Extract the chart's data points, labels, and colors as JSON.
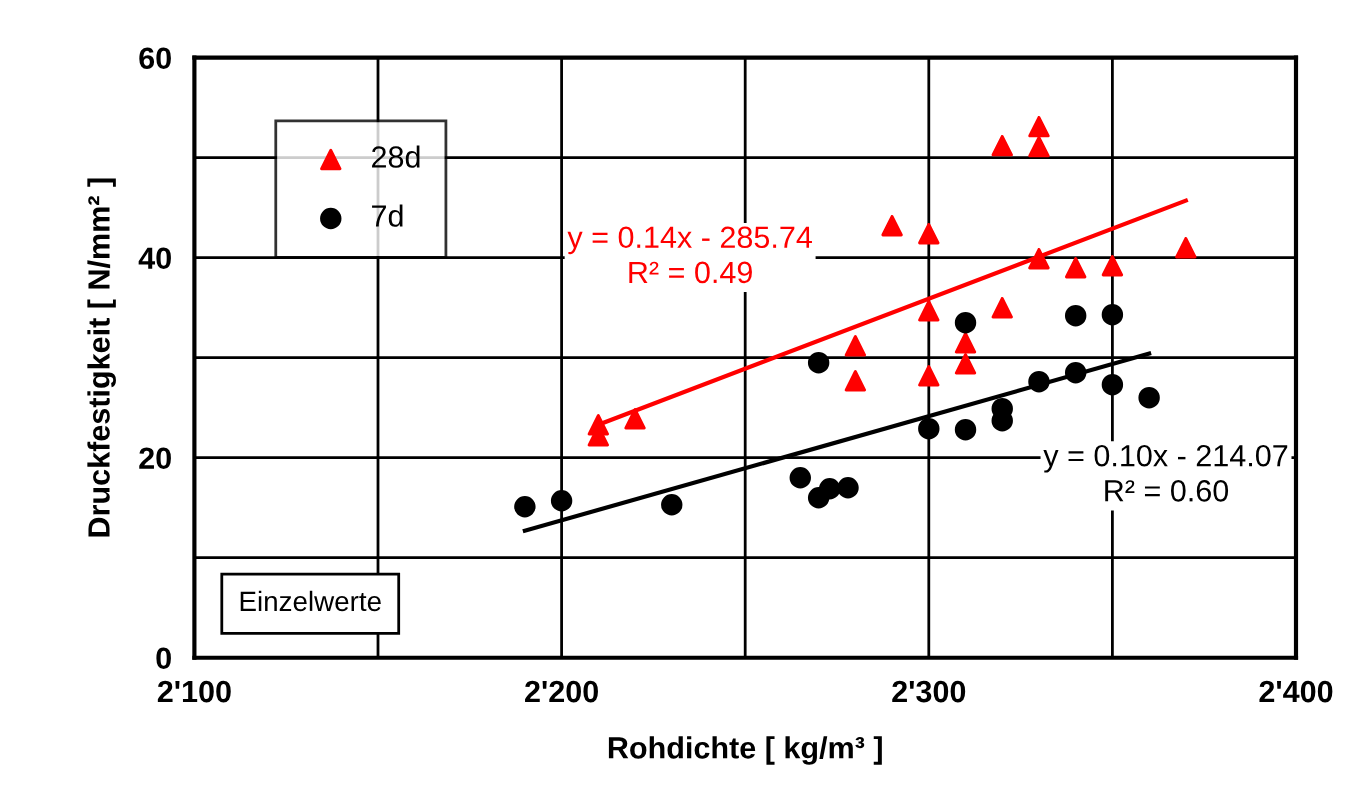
{
  "chart_data": {
    "type": "scatter",
    "xlabel": "Rohdichte [ kg/m³ ]",
    "ylabel": "Druckfestigkeit [ N/mm² ]",
    "xlim": [
      2100,
      2400
    ],
    "ylim": [
      0,
      60
    ],
    "xticks": [
      {
        "value": 2100,
        "label": "2'100"
      },
      {
        "value": 2150,
        "label": null
      },
      {
        "value": 2200,
        "label": "2'200"
      },
      {
        "value": 2250,
        "label": null
      },
      {
        "value": 2300,
        "label": "2'300"
      },
      {
        "value": 2350,
        "label": null
      },
      {
        "value": 2400,
        "label": "2'400"
      }
    ],
    "yticks": [
      0,
      {
        "value": 10,
        "label": null
      },
      20,
      {
        "value": 30,
        "label": null
      },
      40,
      {
        "value": 50,
        "label": null
      },
      60
    ],
    "grid": true,
    "legend": "top left",
    "series": [
      {
        "name": "28d",
        "color": "#ff0000",
        "marker": "triangle",
        "x": [
          2210,
          2210,
          2220,
          2280,
          2280,
          2290,
          2300,
          2300,
          2300,
          2310,
          2310,
          2320,
          2320,
          2330,
          2330,
          2330,
          2340,
          2350,
          2370
        ],
        "values": [
          23.3,
          22.2,
          23.9,
          31.2,
          27.7,
          43.2,
          42.4,
          34.7,
          28.2,
          31.5,
          29.4,
          51.2,
          35,
          53.1,
          51.1,
          39.9,
          39,
          39.2,
          41
        ]
      },
      {
        "name": "7d",
        "color": "#000000",
        "marker": "circle",
        "x": [
          2190,
          2200,
          2230,
          2265,
          2270,
          2270,
          2273,
          2278,
          2300,
          2310,
          2310,
          2320,
          2320,
          2330,
          2340,
          2340,
          2350,
          2350,
          2360
        ],
        "values": [
          15.1,
          15.7,
          15.3,
          18,
          29.5,
          16,
          16.9,
          17,
          22.9,
          33.5,
          22.8,
          24.9,
          23.7,
          27.6,
          34.2,
          28.5,
          34.3,
          27.3,
          26
        ]
      },
      {
        "type": "line",
        "color": "#ff0000",
        "x": [
          2210,
          2370
        ],
        "values": [
          23.3,
          45.7
        ]
      },
      {
        "type": "line",
        "color": "#000000",
        "x": [
          2190,
          2360
        ],
        "values": [
          12.7,
          30.4
        ]
      }
    ],
    "annotations": [
      "y = 0.14x - 285.74\nR² = 0.49",
      "y = 0.10x - 214.07\nR² = 0.60",
      "Einzelwerte"
    ]
  }
}
